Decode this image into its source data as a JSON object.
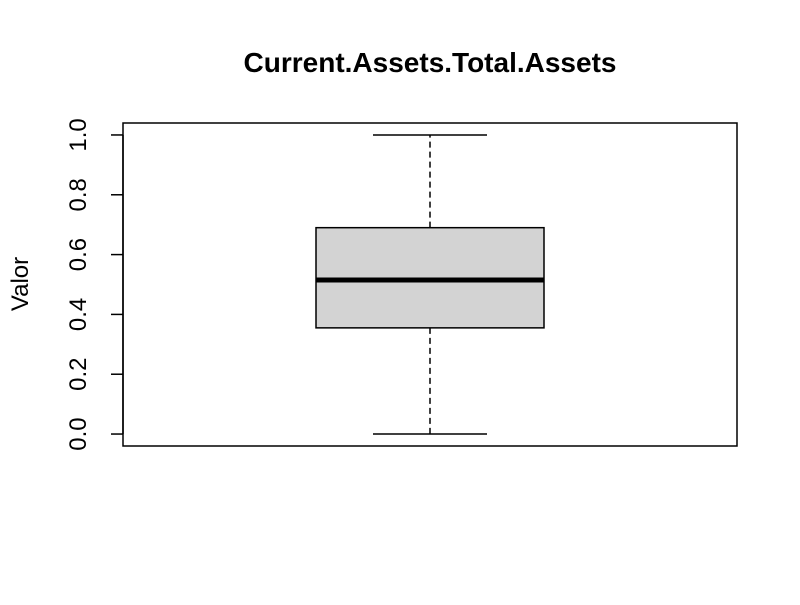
{
  "chart_data": {
    "type": "boxplot",
    "title": "Current.Assets.Total.Assets",
    "xlabel": "",
    "ylabel": "Valor",
    "ylim": [
      -0.04,
      1.04
    ],
    "yticks": [
      "0.0",
      "0.2",
      "0.4",
      "0.6",
      "0.8",
      "1.0"
    ],
    "grid": false,
    "box": {
      "min": 0.0,
      "q1": 0.355,
      "median": 0.515,
      "q3": 0.69,
      "max": 1.0
    },
    "colors": {
      "box_fill": "#d3d3d3",
      "stroke": "#000000"
    }
  }
}
